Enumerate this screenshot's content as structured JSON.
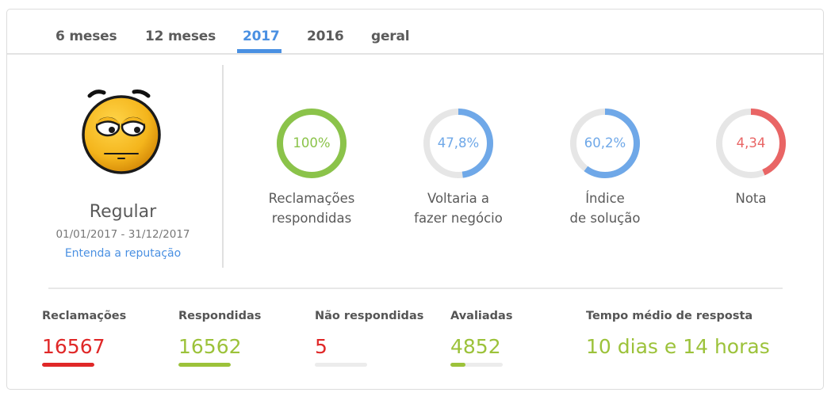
{
  "colors": {
    "accent_blue": "#4a90e2",
    "green": "#8bc34a",
    "ring_blue": "#6fa8e8",
    "red": "#e96565",
    "stat_red": "#e02828",
    "stat_green": "#9cc23a",
    "track": "#e6e6e6"
  },
  "tabs": [
    {
      "label": "6 meses",
      "active": false
    },
    {
      "label": "12 meses",
      "active": false
    },
    {
      "label": "2017",
      "active": true
    },
    {
      "label": "2016",
      "active": false
    },
    {
      "label": "geral",
      "active": false
    }
  ],
  "reputation": {
    "emoji": "neutral-face-icon",
    "status": "Regular",
    "period": "01/01/2017 - 31/12/2017",
    "link_label": "Entenda a reputação"
  },
  "metrics": [
    {
      "value": "100%",
      "percent": 100,
      "label_line1": "Reclamações",
      "label_line2": "respondidas",
      "color": "#8bc34a"
    },
    {
      "value": "47,8%",
      "percent": 47.8,
      "label_line1": "Voltaria a",
      "label_line2": "fazer negócio",
      "color": "#6fa8e8"
    },
    {
      "value": "60,2%",
      "percent": 60.2,
      "label_line1": "Índice",
      "label_line2": "de solução",
      "color": "#6fa8e8"
    },
    {
      "value": "4,34",
      "percent": 43.4,
      "label_line1": "Nota",
      "label_line2": "",
      "color": "#e96565"
    }
  ],
  "stats": [
    {
      "title": "Reclamações",
      "value": "16567",
      "value_color": "#e02828",
      "bar_percent": 100,
      "bar_color": "#e02828"
    },
    {
      "title": "Respondidas",
      "value": "16562",
      "value_color": "#9cc23a",
      "bar_percent": 100,
      "bar_color": "#9cc23a"
    },
    {
      "title": "Não respondidas",
      "value": "5",
      "value_color": "#e02828",
      "bar_percent": 0,
      "bar_color": "#e02828"
    },
    {
      "title": "Avaliadas",
      "value": "4852",
      "value_color": "#9cc23a",
      "bar_percent": 29,
      "bar_color": "#9cc23a"
    },
    {
      "title": "Tempo médio de resposta",
      "value": "10 dias e 14 horas",
      "value_color": "#9cc23a"
    }
  ]
}
